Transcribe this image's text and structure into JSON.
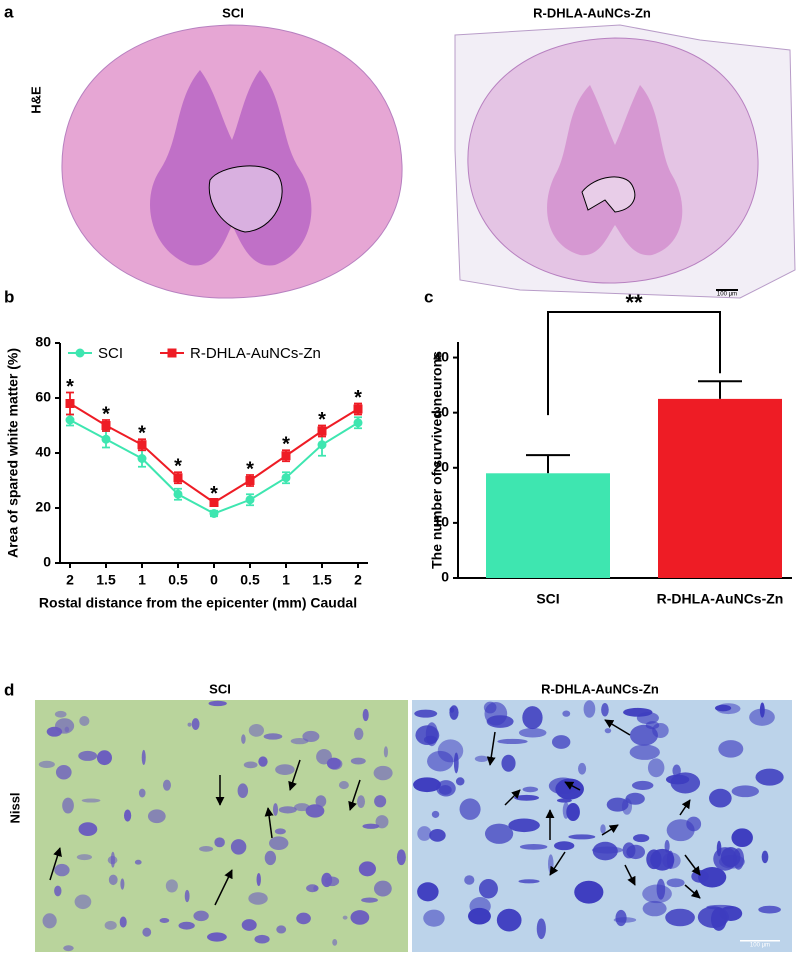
{
  "panels": {
    "a": {
      "letter": "a",
      "left_title": "SCI",
      "right_title": "R-DHLA-AuNCs-Zn",
      "row_label": "H&E",
      "scale_bar": "100 μm"
    },
    "b": {
      "letter": "b"
    },
    "c": {
      "letter": "c"
    },
    "d": {
      "letter": "d",
      "left_title": "SCI",
      "right_title": "R-DHLA-AuNCs-Zn",
      "row_label": "Nissl",
      "scale_bar": "100 μm"
    }
  },
  "chart_data": [
    {
      "type": "line",
      "categories": [
        "2",
        "1.5",
        "1",
        "0.5",
        "0",
        "0.5",
        "1",
        "1.5",
        "2"
      ],
      "x_label": "Rostal distance from the epicenter (mm) Caudal",
      "y_label": "Area of spared white matter (%)",
      "ylim": [
        0,
        80
      ],
      "yticks": [
        0,
        20,
        40,
        60,
        80
      ],
      "annotations": [
        "*",
        "*",
        "*",
        "*",
        "*",
        "*",
        "*",
        "*",
        "*"
      ],
      "series": [
        {
          "name": "SCI",
          "color": "#3ee6b0",
          "values": [
            52,
            45,
            38,
            25,
            18,
            23,
            31,
            43,
            51
          ],
          "errors": [
            2,
            3,
            3,
            2,
            1,
            2,
            2,
            4,
            2
          ]
        },
        {
          "name": "R-DHLA-AuNCs-Zn",
          "color": "#ee1c25",
          "values": [
            58,
            50,
            43,
            31,
            22,
            30,
            39,
            48,
            56
          ],
          "errors": [
            4,
            2,
            2,
            2,
            1,
            2,
            2,
            2,
            2
          ]
        }
      ]
    },
    {
      "type": "bar",
      "categories": [
        "SCI",
        "R-DHLA-AuNCs-Zn"
      ],
      "y_label": "The number of survived neurons",
      "values": [
        19,
        32.5
      ],
      "errors": [
        3.3,
        3.2
      ],
      "colors": [
        "#3ee6b0",
        "#ee1c25"
      ],
      "ylim": [
        0,
        45
      ],
      "yticks": [
        0,
        10,
        20,
        30,
        40
      ],
      "significance": "**"
    }
  ]
}
